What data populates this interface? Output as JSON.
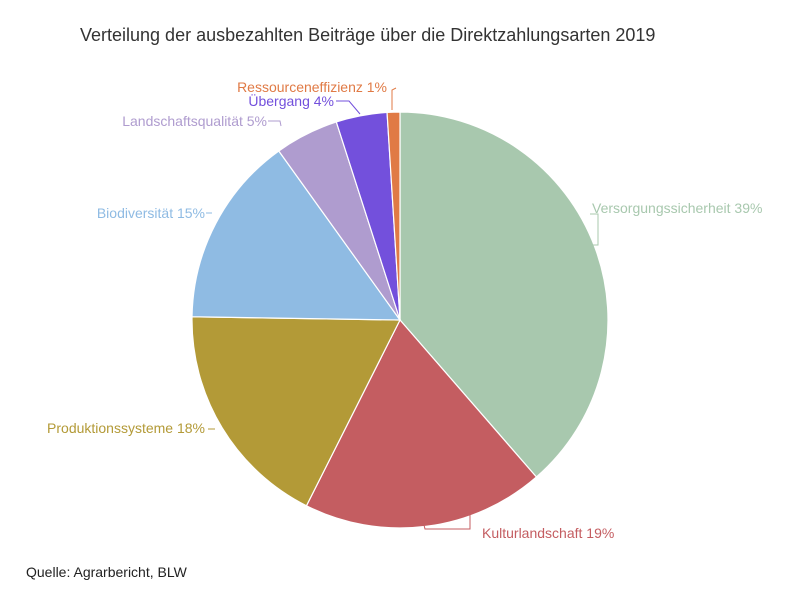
{
  "chart_data": {
    "type": "pie",
    "title": "Verteilung der ausbezahlten Beiträge über die Direktzahlungsarten 2019",
    "source": "Quelle: Agrarbericht, BLW",
    "slices": [
      {
        "name": "Versorgungssicherheit",
        "value": 39,
        "label": "Versorgungssicherheit 39%",
        "color": "#a8c8ae"
      },
      {
        "name": "Kulturlandschaft",
        "value": 19,
        "label": "Kulturlandschaft 19%",
        "color": "#c45d61"
      },
      {
        "name": "Produktionssysteme",
        "value": 18,
        "label": "Produktionssysteme 18%",
        "color": "#b39a37"
      },
      {
        "name": "Biodiversität",
        "value": 15,
        "label": "Biodiversität 15%",
        "color": "#8fbbe3"
      },
      {
        "name": "Landschaftsqualität",
        "value": 5,
        "label": "Landschaftsqualität 5%",
        "color": "#af9ccf"
      },
      {
        "name": "Übergang",
        "value": 4,
        "label": "Übergang 4%",
        "color": "#7350dc"
      },
      {
        "name": "Ressourceneffizienz",
        "value": 1,
        "label": "Ressourceneffizienz 1%",
        "color": "#e07a45"
      }
    ]
  }
}
